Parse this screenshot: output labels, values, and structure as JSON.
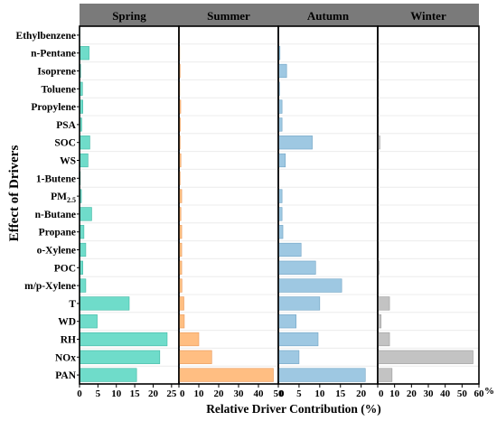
{
  "chart_data": {
    "type": "bar",
    "orientation": "horizontal",
    "xlabel": "Relative Driver Contribution (%)",
    "ylabel": "Effect of Drivers",
    "x_unit_suffix": "%",
    "categories": [
      "Ethylbenzene",
      "n-Pentane",
      "Isoprene",
      "Toluene",
      "Propylene",
      "PSA",
      "SOC",
      "WS",
      "1-Butene",
      "PM",
      "n-Butane",
      "Propane",
      "o-Xylene",
      "POC",
      "m/p-Xylene",
      "T",
      "WD",
      "RH",
      "NOx",
      "PAN"
    ],
    "category_subscripts": {
      "PM": "2.5"
    },
    "grid": false,
    "legend": "none",
    "panels": [
      {
        "name": "Spring",
        "color": "#6fdcca",
        "stroke": "#3fb7a3",
        "xlim": [
          0,
          27
        ],
        "ticks": [
          0,
          5,
          10,
          15,
          20,
          25
        ],
        "values": [
          0.1,
          2.6,
          0.3,
          0.8,
          0.9,
          0.6,
          2.8,
          2.3,
          0.2,
          0.5,
          3.3,
          1.2,
          1.7,
          0.9,
          1.7,
          13.5,
          4.8,
          23.8,
          21.8,
          15.5
        ]
      },
      {
        "name": "Summer",
        "color": "#ffbe82",
        "stroke": "#e8995a",
        "xlim": [
          0,
          50
        ],
        "ticks": [
          0,
          10,
          20,
          30,
          40,
          50
        ],
        "tick_labels": [
          "0",
          "10",
          "20",
          "30",
          "40",
          "50"
        ],
        "values": [
          0.2,
          0.4,
          0.6,
          0.4,
          0.9,
          0.7,
          0.6,
          1.0,
          0.6,
          1.4,
          1.0,
          1.4,
          1.4,
          1.4,
          1.5,
          2.5,
          2.7,
          10.0,
          16.5,
          47.5
        ]
      },
      {
        "name": "Autumn",
        "color": "#9ec8e2",
        "stroke": "#6fa3c4",
        "xlim": [
          0,
          24
        ],
        "ticks": [
          0,
          5,
          10,
          15,
          20
        ],
        "values": [
          0.1,
          0.4,
          2.0,
          0.3,
          0.9,
          0.9,
          8.2,
          1.7,
          0.1,
          0.9,
          0.9,
          1.1,
          5.5,
          9.0,
          15.3,
          10.0,
          4.3,
          9.6,
          5.0,
          21.0
        ]
      },
      {
        "name": "Winter",
        "color": "#c3c3c3",
        "stroke": "#9a9a9a",
        "xlim": [
          0,
          60
        ],
        "ticks": [
          0,
          10,
          20,
          30,
          40,
          50,
          60
        ],
        "values": [
          0.1,
          0.1,
          0.1,
          0.1,
          0.1,
          0.1,
          1.3,
          0.1,
          0.1,
          0.1,
          0.1,
          0.1,
          0.1,
          0.8,
          0.4,
          7.0,
          2.0,
          7.0,
          56.5,
          8.5
        ]
      }
    ]
  }
}
